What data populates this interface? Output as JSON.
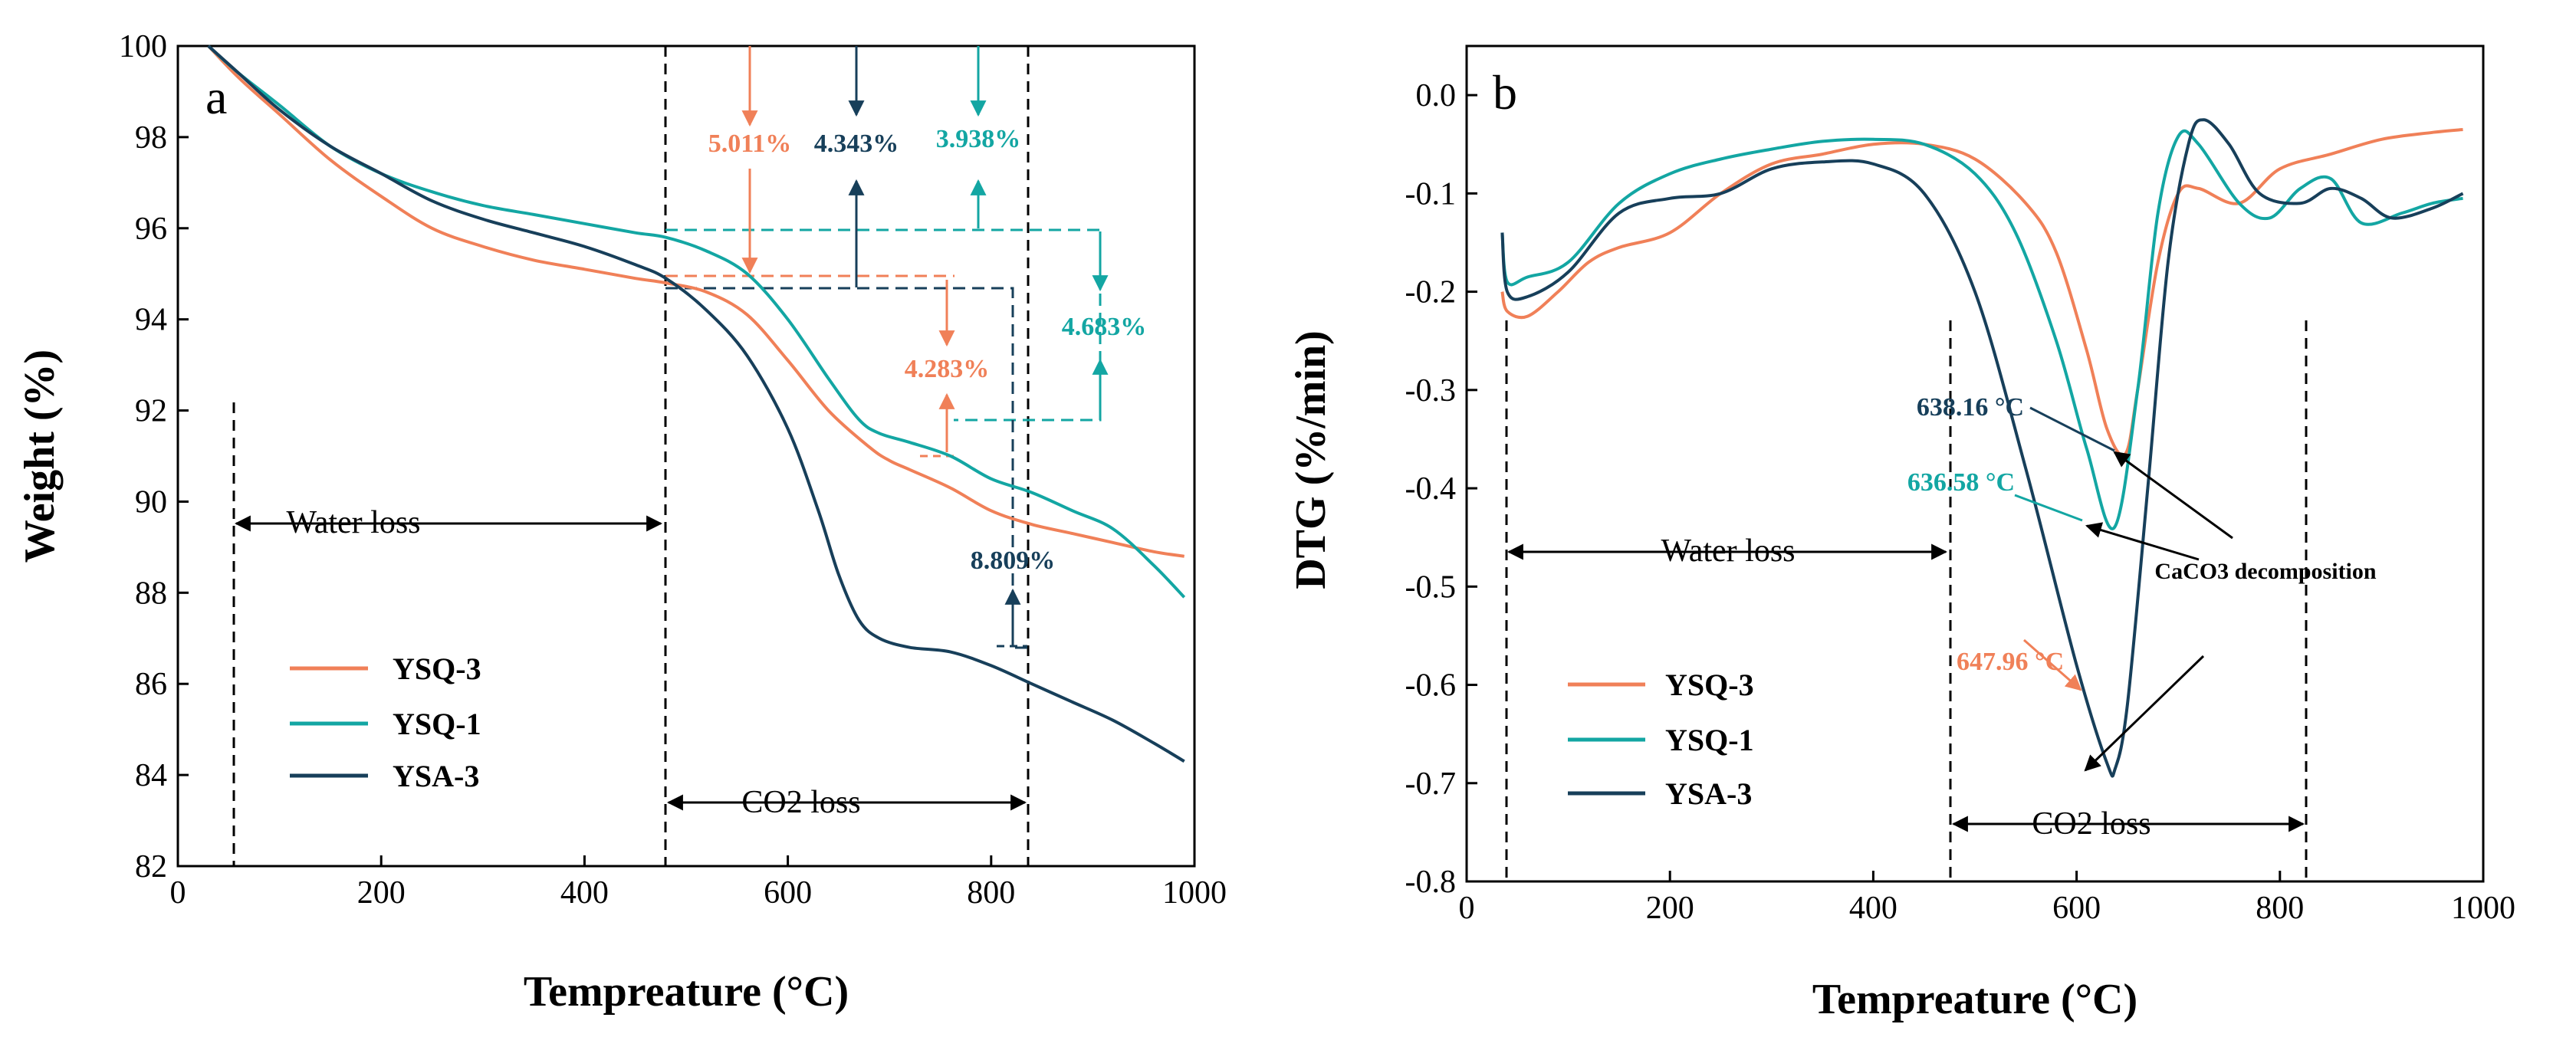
{
  "colors": {
    "YSQ-3": "#f08058",
    "YSQ-1": "#13a6a3",
    "YSA-3": "#173f5a",
    "axis": "#000000"
  },
  "chart_data": [
    {
      "type": "line",
      "panel_label": "a",
      "xlabel": "Tempreature (°C)",
      "ylabel": "Weight (%)",
      "xlim": [
        0,
        1000
      ],
      "ylim": [
        82,
        100
      ],
      "xticks": [
        "0",
        "200",
        "400",
        "600",
        "800",
        "1000"
      ],
      "yticks": [
        "82",
        "84",
        "86",
        "88",
        "90",
        "92",
        "94",
        "96",
        "98",
        "100"
      ],
      "legend": {
        "position": "bottom-left",
        "entries": [
          "YSQ-3",
          "YSQ-1",
          "YSA-3"
        ]
      },
      "series": [
        {
          "name": "YSQ-3",
          "color_key": "YSQ-3",
          "x": [
            30,
            60,
            100,
            150,
            200,
            250,
            300,
            350,
            400,
            450,
            480,
            520,
            560,
            600,
            640,
            680,
            700,
            720,
            760,
            800,
            840,
            880,
            920,
            960,
            990
          ],
          "y": [
            100,
            99.3,
            98.5,
            97.5,
            96.7,
            96.0,
            95.6,
            95.3,
            95.1,
            94.9,
            94.8,
            94.6,
            94.1,
            93.1,
            92.0,
            91.2,
            90.9,
            90.7,
            90.3,
            89.8,
            89.5,
            89.3,
            89.1,
            88.9,
            88.8
          ]
        },
        {
          "name": "YSQ-1",
          "color_key": "YSQ-1",
          "x": [
            30,
            60,
            100,
            150,
            200,
            250,
            300,
            350,
            400,
            450,
            480,
            520,
            560,
            600,
            640,
            670,
            690,
            720,
            760,
            800,
            840,
            880,
            920,
            960,
            990
          ],
          "y": [
            100,
            99.4,
            98.7,
            97.8,
            97.2,
            96.8,
            96.5,
            96.3,
            96.1,
            95.9,
            95.8,
            95.5,
            95.0,
            94.0,
            92.7,
            91.8,
            91.5,
            91.3,
            91.0,
            90.5,
            90.2,
            89.8,
            89.4,
            88.6,
            87.9
          ]
        },
        {
          "name": "YSA-3",
          "color_key": "YSA-3",
          "x": [
            30,
            60,
            100,
            150,
            200,
            250,
            300,
            350,
            400,
            450,
            480,
            520,
            560,
            600,
            630,
            650,
            670,
            690,
            720,
            760,
            800,
            840,
            880,
            920,
            960,
            990
          ],
          "y": [
            100,
            99.4,
            98.6,
            97.8,
            97.2,
            96.6,
            96.2,
            95.9,
            95.6,
            95.2,
            94.9,
            94.2,
            93.2,
            91.6,
            89.8,
            88.4,
            87.4,
            87.0,
            86.8,
            86.7,
            86.4,
            86.0,
            85.6,
            85.2,
            84.7,
            84.3
          ]
        }
      ],
      "annotations": [
        {
          "text": "Water loss",
          "range_x": [
            55,
            480
          ]
        },
        {
          "text": "CO2 loss",
          "range_x": [
            480,
            835
          ]
        },
        {
          "text": "5.011%",
          "color_key": "YSQ-3"
        },
        {
          "text": "4.343%",
          "color_key": "YSA-3"
        },
        {
          "text": "3.938%",
          "color_key": "YSQ-1"
        },
        {
          "text": "4.283%",
          "color_key": "YSQ-3"
        },
        {
          "text": "4.683%",
          "color_key": "YSQ-1"
        },
        {
          "text": "8.809%",
          "color_key": "YSA-3"
        }
      ]
    },
    {
      "type": "line",
      "panel_label": "b",
      "xlabel": "Tempreature (°C)",
      "ylabel": "DTG (%/min)",
      "xlim": [
        0,
        1000
      ],
      "ylim": [
        -0.8,
        0.05
      ],
      "xticks": [
        "0",
        "200",
        "400",
        "600",
        "800",
        "1000"
      ],
      "yticks": [
        "-0.8",
        "-0.7",
        "-0.6",
        "-0.5",
        "-0.4",
        "-0.3",
        "-0.2",
        "-0.1",
        "0.0"
      ],
      "legend": {
        "position": "bottom-left",
        "entries": [
          "YSQ-3",
          "YSQ-1",
          "YSA-3"
        ]
      },
      "series": [
        {
          "name": "YSQ-3",
          "color_key": "YSQ-3",
          "x": [
            35,
            40,
            60,
            90,
            120,
            150,
            200,
            250,
            300,
            350,
            400,
            450,
            500,
            550,
            580,
            610,
            630,
            648,
            660,
            680,
            700,
            720,
            760,
            800,
            850,
            900,
            950,
            980
          ],
          "y": [
            -0.2,
            -0.22,
            -0.225,
            -0.2,
            -0.17,
            -0.155,
            -0.14,
            -0.1,
            -0.07,
            -0.06,
            -0.05,
            -0.05,
            -0.065,
            -0.11,
            -0.16,
            -0.26,
            -0.34,
            -0.365,
            -0.3,
            -0.17,
            -0.1,
            -0.095,
            -0.11,
            -0.075,
            -0.06,
            -0.045,
            -0.038,
            -0.035
          ]
        },
        {
          "name": "YSQ-1",
          "color_key": "YSQ-1",
          "x": [
            35,
            40,
            60,
            100,
            150,
            200,
            250,
            300,
            350,
            400,
            450,
            500,
            540,
            580,
            610,
            637,
            660,
            680,
            700,
            720,
            760,
            790,
            820,
            850,
            880,
            920,
            950,
            980
          ],
          "y": [
            -0.14,
            -0.19,
            -0.185,
            -0.17,
            -0.11,
            -0.08,
            -0.065,
            -0.055,
            -0.047,
            -0.045,
            -0.05,
            -0.08,
            -0.14,
            -0.25,
            -0.36,
            -0.44,
            -0.3,
            -0.12,
            -0.042,
            -0.05,
            -0.11,
            -0.125,
            -0.095,
            -0.085,
            -0.13,
            -0.12,
            -0.11,
            -0.105
          ]
        },
        {
          "name": "YSA-3",
          "color_key": "YSA-3",
          "x": [
            35,
            40,
            60,
            100,
            150,
            200,
            250,
            300,
            350,
            400,
            450,
            500,
            550,
            600,
            630,
            638,
            650,
            670,
            690,
            710,
            725,
            750,
            780,
            820,
            850,
            880,
            910,
            950,
            980
          ],
          "y": [
            -0.14,
            -0.2,
            -0.205,
            -0.18,
            -0.12,
            -0.105,
            -0.1,
            -0.075,
            -0.068,
            -0.07,
            -0.1,
            -0.2,
            -0.38,
            -0.58,
            -0.68,
            -0.685,
            -0.62,
            -0.4,
            -0.17,
            -0.05,
            -0.025,
            -0.05,
            -0.1,
            -0.11,
            -0.095,
            -0.105,
            -0.125,
            -0.115,
            -0.1
          ]
        }
      ],
      "annotations": [
        {
          "text": "Water loss",
          "range_x": [
            40,
            475
          ]
        },
        {
          "text": "CO2 loss",
          "range_x": [
            475,
            825
          ]
        },
        {
          "text": "638.16 °C",
          "color_key": "YSA-3"
        },
        {
          "text": "636.58 °C",
          "color_key": "YSQ-1"
        },
        {
          "text": "647.96 °C",
          "color_key": "YSQ-3"
        },
        {
          "text": "CaCO3 decomposition",
          "color_key": "axis"
        }
      ]
    }
  ]
}
